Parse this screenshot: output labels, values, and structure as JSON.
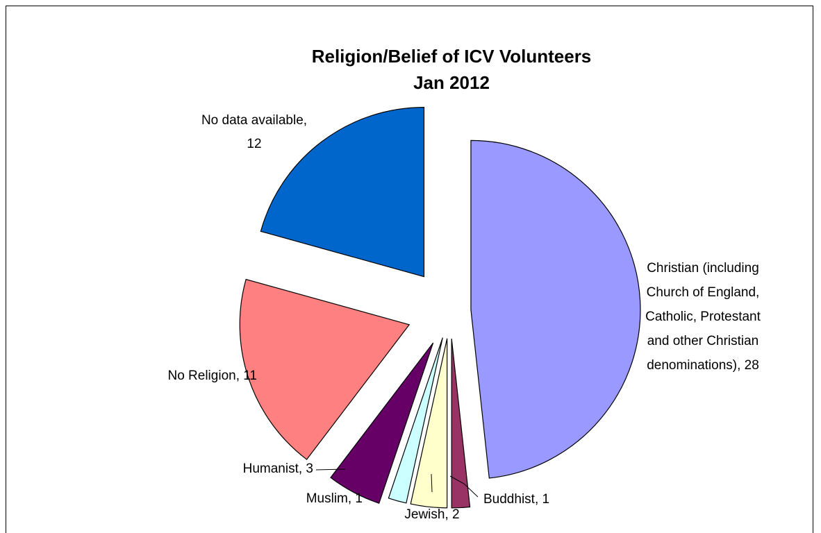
{
  "chart_data": {
    "type": "pie",
    "title_line1": "Religion/Belief of ICV Volunteers",
    "title_line2": "Jan 2012",
    "slices": [
      {
        "label": [
          "Christian (including",
          "Church of England,",
          "Catholic, Protestant",
          "and other Christian",
          "denominations), 28"
        ],
        "value": 28,
        "color": "#9999ff"
      },
      {
        "label": [
          "Buddhist, 1"
        ],
        "value": 1,
        "color": "#993366"
      },
      {
        "label": [
          "Jewish, 2"
        ],
        "value": 2,
        "color": "#ffffcc"
      },
      {
        "label": [
          "Muslim, 1"
        ],
        "value": 1,
        "color": "#ccffff"
      },
      {
        "label": [
          "Humanist, 3"
        ],
        "value": 3,
        "color": "#660066"
      },
      {
        "label": [
          "No Religion, 11"
        ],
        "value": 11,
        "color": "#ff8080"
      },
      {
        "label": [
          "No data available,",
          "12"
        ],
        "value": 12,
        "color": "#0066cc"
      }
    ]
  }
}
